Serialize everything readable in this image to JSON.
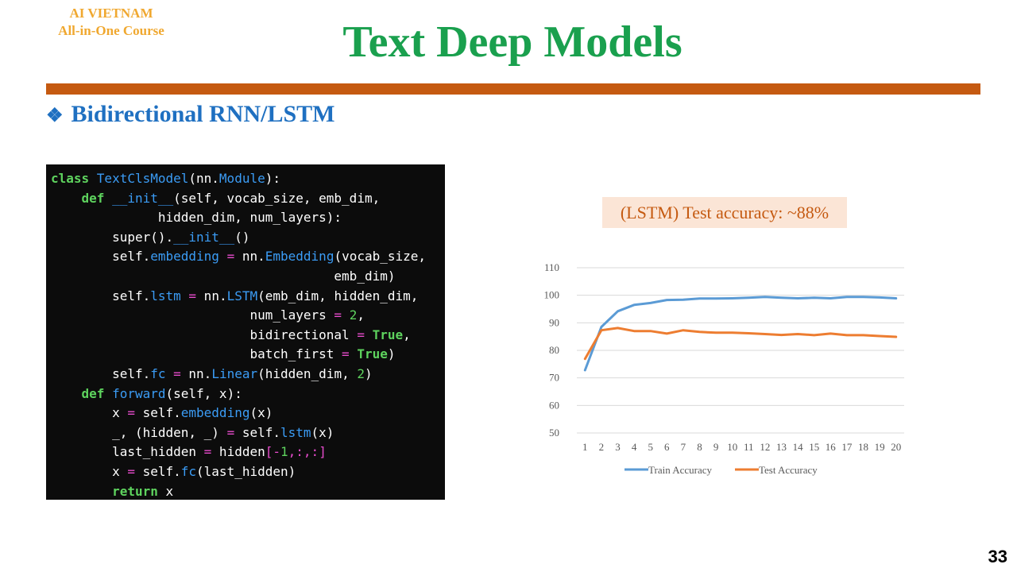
{
  "header": {
    "brand_line1": "AI VIETNAM",
    "brand_line2": "All-in-One Course",
    "title": "Text Deep Models",
    "accent_color": "#c55a11",
    "title_color": "#1aa04e"
  },
  "section": {
    "bullet": "❖",
    "heading": "Bidirectional RNN/LSTM"
  },
  "code": {
    "lines": [
      [
        {
          "t": "class ",
          "c": "kw"
        },
        {
          "t": "TextClsModel",
          "c": "cls"
        },
        {
          "t": "(nn."
        },
        {
          "t": "Module",
          "c": "cls"
        },
        {
          "t": "):"
        }
      ],
      [
        {
          "t": "    "
        },
        {
          "t": "def ",
          "c": "kw"
        },
        {
          "t": "__init__",
          "c": "cls"
        },
        {
          "t": "(self, vocab_size, emb_dim,"
        }
      ],
      [
        {
          "t": "              hidden_dim, num_layers):"
        }
      ],
      [
        {
          "t": "        super()."
        },
        {
          "t": "__init__",
          "c": "cls"
        },
        {
          "t": "()"
        }
      ],
      [
        {
          "t": "        self."
        },
        {
          "t": "embedding",
          "c": "attr"
        },
        {
          "t": " "
        },
        {
          "t": "=",
          "c": "op"
        },
        {
          "t": " nn."
        },
        {
          "t": "Embedding",
          "c": "cls"
        },
        {
          "t": "(vocab_size,"
        }
      ],
      [
        {
          "t": "                                     emb_dim)"
        }
      ],
      [
        {
          "t": "        self."
        },
        {
          "t": "lstm",
          "c": "attr"
        },
        {
          "t": " "
        },
        {
          "t": "=",
          "c": "op"
        },
        {
          "t": " nn."
        },
        {
          "t": "LSTM",
          "c": "cls"
        },
        {
          "t": "(emb_dim, hidden_dim,"
        }
      ],
      [
        {
          "t": "                          num_layers "
        },
        {
          "t": "=",
          "c": "op"
        },
        {
          "t": " "
        },
        {
          "t": "2",
          "c": "num"
        },
        {
          "t": ","
        }
      ],
      [
        {
          "t": "                          bidirectional "
        },
        {
          "t": "=",
          "c": "op"
        },
        {
          "t": " "
        },
        {
          "t": "True",
          "c": "bool"
        },
        {
          "t": ","
        }
      ],
      [
        {
          "t": "                          batch_first "
        },
        {
          "t": "=",
          "c": "op"
        },
        {
          "t": " "
        },
        {
          "t": "True",
          "c": "bool"
        },
        {
          "t": ")"
        }
      ],
      [
        {
          "t": "        self."
        },
        {
          "t": "fc",
          "c": "attr"
        },
        {
          "t": " "
        },
        {
          "t": "=",
          "c": "op"
        },
        {
          "t": " nn."
        },
        {
          "t": "Linear",
          "c": "cls"
        },
        {
          "t": "(hidden_dim, "
        },
        {
          "t": "2",
          "c": "num"
        },
        {
          "t": ")"
        }
      ],
      [
        {
          "t": "    "
        },
        {
          "t": "def ",
          "c": "kw"
        },
        {
          "t": "forward",
          "c": "cls"
        },
        {
          "t": "(self, x):"
        }
      ],
      [
        {
          "t": "        x "
        },
        {
          "t": "=",
          "c": "op"
        },
        {
          "t": " self."
        },
        {
          "t": "embedding",
          "c": "attr"
        },
        {
          "t": "(x)"
        }
      ],
      [
        {
          "t": "        _, (hidden, _) "
        },
        {
          "t": "=",
          "c": "op"
        },
        {
          "t": " self."
        },
        {
          "t": "lstm",
          "c": "attr"
        },
        {
          "t": "(x)"
        }
      ],
      [
        {
          "t": "        last_hidden "
        },
        {
          "t": "=",
          "c": "op"
        },
        {
          "t": " hidden"
        },
        {
          "t": "[",
          "c": "op"
        },
        {
          "t": "-",
          "c": "op"
        },
        {
          "t": "1",
          "c": "num"
        },
        {
          "t": ",:,:",
          "c": "op"
        },
        {
          "t": "]",
          "c": "op"
        }
      ],
      [
        {
          "t": "        x "
        },
        {
          "t": "=",
          "c": "op"
        },
        {
          "t": " self."
        },
        {
          "t": "fc",
          "c": "attr"
        },
        {
          "t": "(last_hidden)"
        }
      ],
      [
        {
          "t": "        "
        },
        {
          "t": "return",
          "c": "kw"
        },
        {
          "t": " x"
        }
      ]
    ]
  },
  "note": "(LSTM) Test accuracy: ~88%",
  "chart_data": {
    "type": "line",
    "categories": [
      "1",
      "2",
      "3",
      "4",
      "5",
      "6",
      "7",
      "8",
      "9",
      "10",
      "11",
      "12",
      "13",
      "14",
      "15",
      "16",
      "17",
      "18",
      "19",
      "20"
    ],
    "ylim": [
      50,
      110
    ],
    "yticks": [
      50,
      60,
      70,
      80,
      90,
      100,
      110
    ],
    "grid": true,
    "legend": "bottom",
    "series": [
      {
        "name": "Train Accuracy",
        "color": "#5b9bd5",
        "values": [
          72.8,
          88.5,
          94.2,
          96.5,
          97.2,
          98.3,
          98.4,
          98.8,
          98.8,
          98.9,
          99.1,
          99.4,
          99.1,
          98.9,
          99.1,
          98.9,
          99.4,
          99.4,
          99.2,
          98.9
        ]
      },
      {
        "name": "Test Accuracy",
        "color": "#ed7d31",
        "values": [
          76.9,
          87.3,
          88.1,
          87.0,
          87.0,
          86.1,
          87.3,
          86.7,
          86.4,
          86.4,
          86.2,
          85.9,
          85.6,
          85.9,
          85.5,
          86.1,
          85.5,
          85.5,
          85.2,
          84.9
        ]
      }
    ]
  },
  "page_number": "33"
}
